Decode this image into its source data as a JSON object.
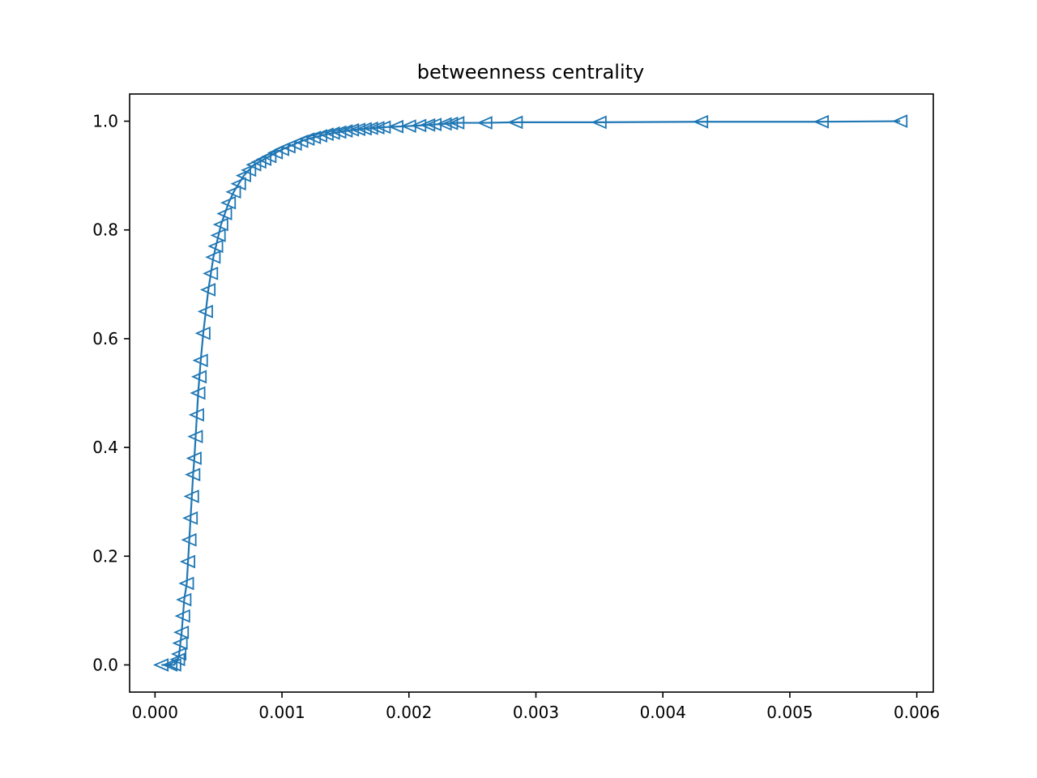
{
  "chart_data": {
    "type": "line",
    "title": "betweenness centrality",
    "xlabel": "",
    "ylabel": "",
    "xlim": [
      -0.0002,
      0.00613
    ],
    "ylim": [
      -0.05,
      1.05
    ],
    "xticks": [
      0.0,
      0.001,
      0.002,
      0.003,
      0.004,
      0.005,
      0.006
    ],
    "xtick_labels": [
      "0.000",
      "0.001",
      "0.002",
      "0.003",
      "0.004",
      "0.005",
      "0.006"
    ],
    "yticks": [
      0.0,
      0.2,
      0.4,
      0.6,
      0.8,
      1.0
    ],
    "ytick_labels": [
      "0.0",
      "0.2",
      "0.4",
      "0.6",
      "0.8",
      "1.0"
    ],
    "grid": false,
    "marker": "triangle-left (hollow)",
    "color": "#1f77b4",
    "series": [
      {
        "x": [
          5e-05,
          0.00012,
          0.00015,
          0.00018,
          0.00019,
          0.0002,
          0.00021,
          0.00022,
          0.00023,
          0.00025,
          0.00026,
          0.00027,
          0.00028,
          0.00029,
          0.0003,
          0.00031,
          0.00032,
          0.00033,
          0.00034,
          0.00035,
          0.00036,
          0.00038,
          0.0004,
          0.00042,
          0.00044,
          0.00046,
          0.00048,
          0.0005,
          0.00052,
          0.00055,
          0.00058,
          0.00062,
          0.00066,
          0.0007,
          0.00074,
          0.00078,
          0.00082,
          0.00086,
          0.0009,
          0.00095,
          0.001,
          0.00105,
          0.0011,
          0.00115,
          0.0012,
          0.00125,
          0.0013,
          0.00135,
          0.0014,
          0.00145,
          0.0015,
          0.00155,
          0.0016,
          0.00165,
          0.0017,
          0.00175,
          0.0018,
          0.0019,
          0.002,
          0.00208,
          0.00215,
          0.0022,
          0.00228,
          0.00233,
          0.00238,
          0.0026,
          0.00284,
          0.0035,
          0.0043,
          0.00525,
          0.00587
        ],
        "y": [
          0.0,
          0.0,
          0.0,
          0.01,
          0.02,
          0.04,
          0.06,
          0.09,
          0.12,
          0.15,
          0.19,
          0.23,
          0.27,
          0.31,
          0.35,
          0.38,
          0.42,
          0.46,
          0.5,
          0.53,
          0.56,
          0.61,
          0.65,
          0.69,
          0.72,
          0.75,
          0.77,
          0.79,
          0.81,
          0.83,
          0.85,
          0.87,
          0.885,
          0.9,
          0.91,
          0.92,
          0.925,
          0.93,
          0.935,
          0.942,
          0.948,
          0.953,
          0.958,
          0.963,
          0.967,
          0.97,
          0.973,
          0.976,
          0.978,
          0.98,
          0.982,
          0.984,
          0.985,
          0.986,
          0.987,
          0.988,
          0.989,
          0.99,
          0.991,
          0.992,
          0.993,
          0.994,
          0.995,
          0.996,
          0.997,
          0.997,
          0.998,
          0.998,
          0.999,
          0.999,
          1.0
        ]
      }
    ]
  }
}
